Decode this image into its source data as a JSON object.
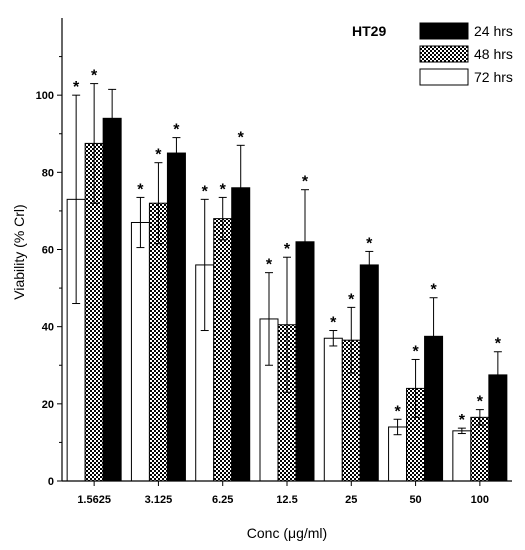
{
  "chart_data": {
    "type": "bar",
    "title": "",
    "cell_label": "HT29",
    "xlabel": "Conc (μg/ml)",
    "ylabel": "Viability (% Crl)",
    "categories": [
      "1.5625",
      "3.125",
      "6.25",
      "12.5",
      "25",
      "50",
      "100"
    ],
    "ylim": [
      0,
      120
    ],
    "yticks": [
      0,
      20,
      40,
      60,
      80,
      100
    ],
    "legend_position": "top-right",
    "series": [
      {
        "name": "72 hrs",
        "fill": "white",
        "values": [
          73,
          67,
          56,
          42,
          37,
          14,
          13
        ],
        "errors": [
          27,
          6.5,
          17,
          12,
          2,
          2,
          0.7
        ],
        "significant": [
          true,
          true,
          true,
          true,
          true,
          true,
          true
        ]
      },
      {
        "name": "48 hrs",
        "fill": "checker",
        "values": [
          87.5,
          72,
          68,
          40.5,
          36.5,
          24,
          16.5
        ],
        "errors": [
          15.5,
          10.5,
          5.5,
          17.5,
          8.5,
          7.5,
          2
        ],
        "significant": [
          true,
          true,
          true,
          true,
          true,
          true,
          true
        ]
      },
      {
        "name": "24 hrs",
        "fill": "black",
        "values": [
          94,
          85,
          76,
          62,
          56,
          37.5,
          27.5
        ],
        "errors": [
          7.5,
          4,
          11,
          13.5,
          3.5,
          10,
          6
        ],
        "significant": [
          false,
          true,
          true,
          true,
          true,
          true,
          true
        ]
      }
    ],
    "legend_order": [
      "24 hrs",
      "48 hrs",
      "72 hrs"
    ]
  }
}
